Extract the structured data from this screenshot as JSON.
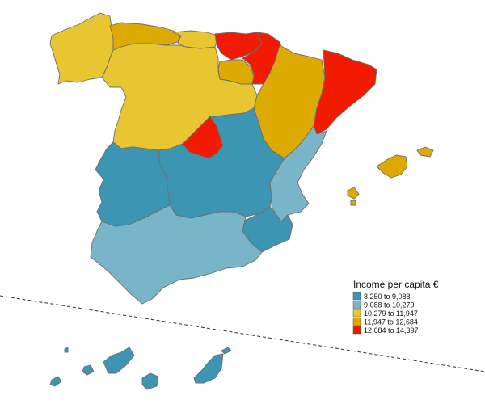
{
  "legend": {
    "title": "Income per capita €",
    "classes": [
      {
        "label": "8,250 to 9,088",
        "color": "#3b95b3"
      },
      {
        "label": "9,088 to 10,279",
        "color": "#79b5c8"
      },
      {
        "label": "10,279 to 11,947",
        "color": "#e8c631"
      },
      {
        "label": "11,947 to 12,684",
        "color": "#dcaa00"
      },
      {
        "label": "12,684 to 14,397",
        "color": "#f21a00"
      }
    ]
  },
  "regions": [
    {
      "name": "Galicia",
      "class": 2
    },
    {
      "name": "Asturias",
      "class": 3
    },
    {
      "name": "Cantabria",
      "class": 2
    },
    {
      "name": "Basque Country",
      "class": 4
    },
    {
      "name": "Navarre",
      "class": 4
    },
    {
      "name": "La Rioja",
      "class": 3
    },
    {
      "name": "Aragon",
      "class": 3
    },
    {
      "name": "Catalonia",
      "class": 4
    },
    {
      "name": "Castile and León",
      "class": 2
    },
    {
      "name": "Madrid",
      "class": 4
    },
    {
      "name": "Castile-La Mancha",
      "class": 0
    },
    {
      "name": "Extremadura",
      "class": 0
    },
    {
      "name": "Valencian Community",
      "class": 1
    },
    {
      "name": "Murcia",
      "class": 0
    },
    {
      "name": "Andalusia",
      "class": 1
    },
    {
      "name": "Balearic Islands",
      "class": 3
    },
    {
      "name": "Canary Islands",
      "class": 0
    }
  ]
}
